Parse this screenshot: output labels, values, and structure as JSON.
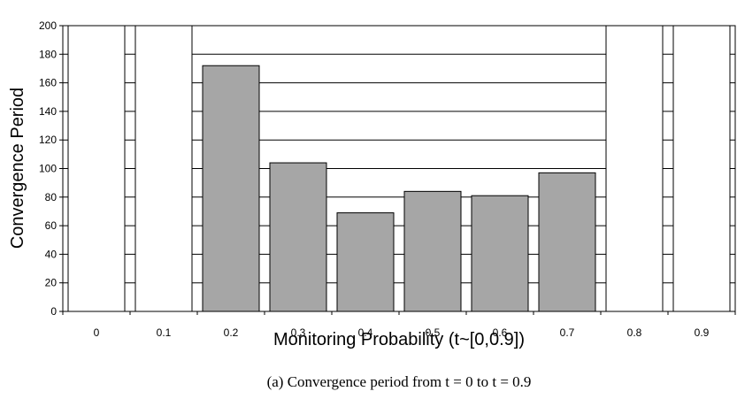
{
  "chart_data": {
    "type": "bar",
    "categories": [
      "0",
      "0.1",
      "0.2",
      "0.3",
      "0.4",
      "0.5",
      "0.6",
      "0.7",
      "0.8",
      "0.9"
    ],
    "values": [
      200,
      200,
      172,
      104,
      69,
      84,
      81,
      97,
      200,
      200
    ],
    "ylim": [
      0,
      200
    ],
    "yticks": [
      "0",
      "20",
      "40",
      "60",
      "80",
      "100",
      "120",
      "140",
      "160",
      "180",
      "200"
    ],
    "xlabel": "Monitoring Probability (t~[0,0.9])",
    "ylabel": "Convergence Period",
    "grid": true,
    "colors": {
      "clipped_bar": "#ffffff",
      "bar": "#a6a6a6",
      "stroke": "#000000"
    }
  },
  "caption": "(a) Convergence period from t = 0 to t = 0.9"
}
